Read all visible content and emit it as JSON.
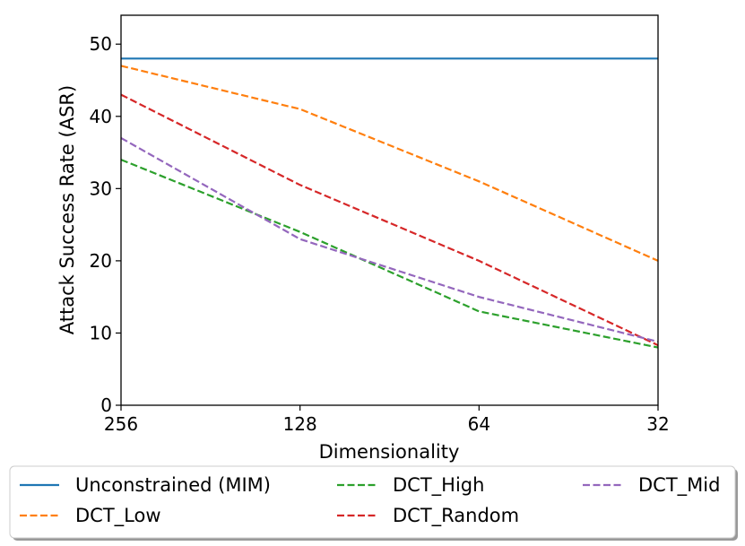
{
  "chart_data": {
    "type": "line",
    "title": "",
    "xlabel": "Dimensionality",
    "ylabel": "Attack Success Rate (ASR)",
    "categories": [
      "256",
      "128",
      "64",
      "32"
    ],
    "ylim": [
      0,
      54
    ],
    "yticks": [
      0,
      10,
      20,
      30,
      40,
      50
    ],
    "grid": false,
    "legend_position": "below",
    "series": [
      {
        "name": "Unconstrained (MIM)",
        "color": "#1f77b4",
        "style": "solid",
        "values": [
          48,
          48,
          48,
          48
        ]
      },
      {
        "name": "DCT_Low",
        "color": "#ff7f0e",
        "style": "dashed",
        "values": [
          47,
          41,
          31,
          20
        ]
      },
      {
        "name": "DCT_High",
        "color": "#2ca02c",
        "style": "dashed",
        "values": [
          34,
          24,
          13,
          8
        ]
      },
      {
        "name": "DCT_Random",
        "color": "#d62728",
        "style": "dashed",
        "values": [
          43,
          30.5,
          20,
          8.3
        ]
      },
      {
        "name": "DCT_Mid",
        "color": "#9467bd",
        "style": "dashed",
        "values": [
          37,
          23,
          15,
          8.8
        ]
      }
    ]
  }
}
